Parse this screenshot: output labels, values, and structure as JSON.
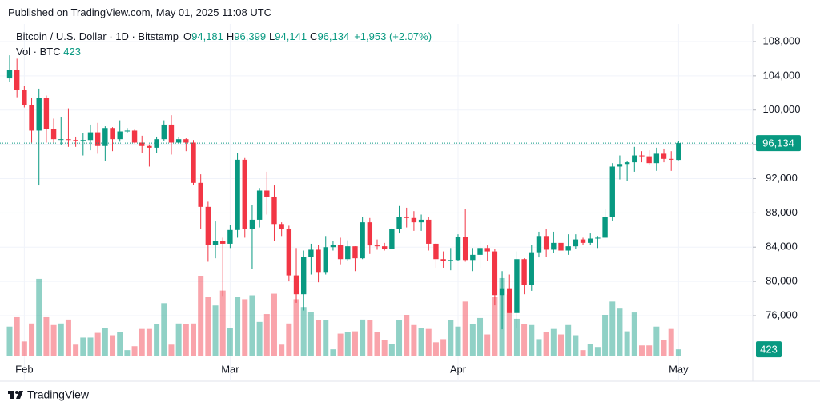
{
  "header": "Published on TradingView.com, May 01, 2025 11:08 UTC",
  "footer": "TradingView",
  "chart_data": {
    "type": "candlestick",
    "legend": {
      "symbol": "Bitcoin / U.S. Dollar · 1D · Bitstamp",
      "fields": [
        {
          "key": "O",
          "value": "94,181"
        },
        {
          "key": "H",
          "value": "96,399"
        },
        {
          "key": "L",
          "value": "94,141"
        },
        {
          "key": "C",
          "value": "96,134"
        }
      ],
      "change": "+1,953 (+2.07%)",
      "volume_label": "Vol · BTC"
    },
    "categories": [
      null,
      null,
      "Feb",
      null,
      null,
      null,
      null,
      null,
      null,
      null,
      null,
      null,
      null,
      null,
      null,
      null,
      null,
      null,
      null,
      null,
      null,
      null,
      null,
      null,
      null,
      null,
      null,
      null,
      null,
      null,
      "Mar",
      null,
      null,
      null,
      null,
      null,
      null,
      null,
      null,
      null,
      null,
      null,
      null,
      null,
      null,
      null,
      null,
      null,
      null,
      null,
      null,
      null,
      null,
      null,
      null,
      null,
      null,
      null,
      null,
      null,
      null,
      "Apr",
      null,
      null,
      null,
      null,
      null,
      null,
      null,
      null,
      null,
      null,
      null,
      null,
      null,
      null,
      null,
      null,
      null,
      null,
      null,
      null,
      null,
      null,
      null,
      null,
      null,
      null,
      null,
      null,
      null,
      "May"
    ],
    "open": [
      103700,
      104700,
      102400,
      100600,
      97600,
      101400,
      97800,
      96600,
      96600,
      96500,
      96400,
      96500,
      97400,
      95800,
      97900,
      96600,
      97500,
      97600,
      96200,
      95800,
      95600,
      96600,
      98300,
      96200,
      96600,
      96200,
      91500,
      88700,
      84300,
      84700,
      84400,
      86000,
      94200,
      86100,
      87200,
      90600,
      89900,
      86700,
      86100,
      80700,
      78500,
      82900,
      83700,
      81100,
      84000,
      84300,
      82600,
      84100,
      82700,
      86900,
      84200,
      84100,
      83800,
      86100,
      87500,
      87400,
      86900,
      87200,
      84400,
      82600,
      82400,
      82500,
      85200,
      82500,
      83100,
      83900,
      83500,
      78400,
      79200,
      76300,
      82600,
      79600,
      83400,
      85300,
      83700,
      84500,
      83600,
      84100,
      84900,
      84500,
      85000,
      85100,
      87500,
      93400,
      93700,
      93900,
      94700,
      94600,
      93800,
      94900,
      94300,
      94181
    ],
    "high": [
      106400,
      106000,
      102800,
      101400,
      102500,
      101700,
      99000,
      99200,
      100200,
      96900,
      97300,
      98300,
      98500,
      98100,
      98000,
      98800,
      97900,
      97700,
      97000,
      96000,
      96900,
      98800,
      99400,
      96800,
      96700,
      96500,
      92500,
      89300,
      87000,
      85100,
      86600,
      95000,
      94400,
      88900,
      90900,
      92800,
      91200,
      86900,
      86500,
      83900,
      83600,
      84400,
      84300,
      85300,
      84700,
      85100,
      84800,
      84100,
      87500,
      87400,
      84900,
      84500,
      86200,
      88800,
      88600,
      88200,
      87800,
      87500,
      84500,
      83500,
      83900,
      85500,
      88500,
      83900,
      84700,
      84200,
      83800,
      81200,
      80800,
      83500,
      82700,
      84300,
      85800,
      86100,
      85800,
      86400,
      85500,
      85500,
      85100,
      85600,
      85300,
      88500,
      93800,
      94700,
      94000,
      95700,
      95200,
      95300,
      95600,
      95500,
      95200,
      96399
    ],
    "low": [
      103300,
      101500,
      100300,
      96200,
      91200,
      96200,
      96200,
      95900,
      95700,
      95700,
      94700,
      95300,
      94900,
      94100,
      95200,
      96300,
      97300,
      96100,
      95000,
      93400,
      95000,
      96400,
      94800,
      96100,
      95200,
      91200,
      86100,
      82300,
      82700,
      78300,
      83900,
      85100,
      85100,
      81500,
      86300,
      87800,
      84700,
      85300,
      80000,
      77500,
      76600,
      80800,
      79900,
      80800,
      83600,
      82000,
      82400,
      81200,
      82600,
      83200,
      83700,
      83600,
      83800,
      85600,
      86300,
      85900,
      85900,
      83600,
      81600,
      81600,
      81300,
      82400,
      82300,
      81200,
      81600,
      82400,
      77200,
      74400,
      76300,
      74600,
      78500,
      78900,
      82800,
      82900,
      83300,
      83600,
      83100,
      83800,
      84300,
      84300,
      83900,
      85100,
      87100,
      91900,
      91700,
      92800,
      93900,
      93600,
      92900,
      93900,
      92900,
      94141
    ],
    "close": [
      104700,
      102400,
      100600,
      97600,
      101400,
      97800,
      96600,
      96600,
      96500,
      96400,
      96500,
      97400,
      95800,
      97900,
      96600,
      97500,
      97600,
      96200,
      95800,
      95600,
      96600,
      98300,
      96200,
      96600,
      96200,
      91500,
      88700,
      84300,
      84700,
      84400,
      86000,
      94200,
      86100,
      87200,
      90600,
      89900,
      86700,
      86100,
      80700,
      78500,
      82900,
      83700,
      81100,
      84000,
      84300,
      82600,
      84100,
      82700,
      86900,
      84200,
      84100,
      83800,
      86100,
      87500,
      87400,
      86900,
      87200,
      84400,
      82600,
      82400,
      82500,
      85200,
      82500,
      83100,
      83900,
      83500,
      78400,
      79200,
      76300,
      82600,
      79600,
      83400,
      85300,
      83700,
      84500,
      83600,
      84100,
      84900,
      84500,
      85000,
      85100,
      87500,
      93400,
      93700,
      93900,
      94700,
      94600,
      93800,
      94900,
      94300,
      94200,
      96134
    ],
    "volumes": [
      1961,
      2597,
      954,
      2173,
      5194,
      2597,
      2067,
      2173,
      2438,
      742,
      1219,
      1219,
      1537,
      1855,
      1378,
      1590,
      371,
      636,
      1802,
      1802,
      2120,
      3551,
      742,
      2173,
      2120,
      2173,
      5406,
      3975,
      3392,
      4399,
      1855,
      3975,
      3816,
      4081,
      2279,
      2809,
      4187,
      742,
      2173,
      3816,
      3286,
      2968,
      2385,
      2385,
      424,
      1484,
      1590,
      1643,
      2438,
      2385,
      1590,
      1060,
      795,
      2385,
      2756,
      2067,
      1855,
      1802,
      901,
      1113,
      2385,
      1961,
      3657,
      2120,
      2544,
      1431,
      3975,
      5247,
      4134,
      2491,
      2120,
      2067,
      1113,
      1590,
      1802,
      1431,
      2067,
      1378,
      371,
      795,
      583,
      2756,
      3657,
      3180,
      1643,
      2915,
      689,
      689,
      1961,
      1060,
      1802,
      423
    ],
    "last_price_label": "96,134",
    "up_color": "#089981",
    "down_color": "#f23645",
    "ylim": [
      70400,
      110050
    ],
    "yticks": [
      {
        "value": 76000,
        "label": "76,000"
      },
      {
        "value": 80000,
        "label": "80,000"
      },
      {
        "value": 84000,
        "label": "84,000"
      },
      {
        "value": 88000,
        "label": "88,000"
      },
      {
        "value": 92000,
        "label": "92,000"
      },
      {
        "value": 96000,
        "label": "96,000"
      },
      {
        "value": 100000,
        "label": "100,000"
      },
      {
        "value": 104000,
        "label": "104,000"
      },
      {
        "value": 108000,
        "label": "108,000"
      }
    ],
    "grid": true
  }
}
